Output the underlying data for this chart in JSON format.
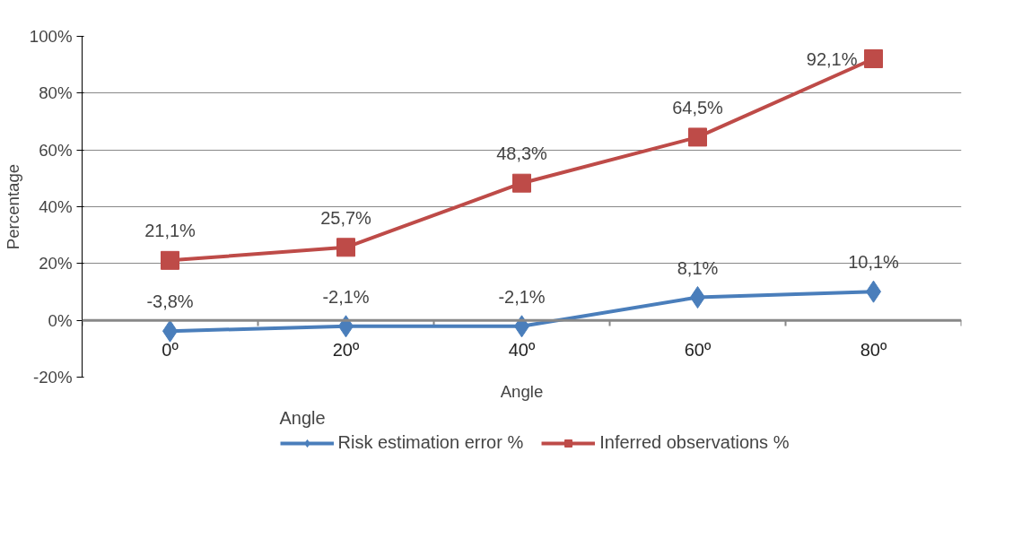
{
  "chart_data": {
    "type": "line",
    "xlabel": "Angle",
    "ylabel": "Percentage",
    "legend_title": "Angle",
    "categories": [
      "0º",
      "20º",
      "40º",
      "60º",
      "80º"
    ],
    "series": [
      {
        "name": "Risk estimation error %",
        "color": "#4a7ebb",
        "marker": "diamond",
        "values": [
          -3.8,
          -2.1,
          -2.1,
          8.1,
          10.1
        ],
        "value_labels": [
          "-3,8%",
          "-2,1%",
          "-2,1%",
          "8,1%",
          "10,1%"
        ]
      },
      {
        "name": "Inferred observations %",
        "color": "#be4b48",
        "marker": "square",
        "values": [
          21.1,
          25.7,
          48.3,
          64.5,
          92.1
        ],
        "value_labels": [
          "21,1%",
          "25,7%",
          "48,3%",
          "64,5%",
          "92,1%"
        ]
      }
    ],
    "ylim": [
      -20,
      100
    ],
    "yticks": [
      {
        "value": -20,
        "label": "-20%"
      },
      {
        "value": 0,
        "label": "0%"
      },
      {
        "value": 20,
        "label": "20%"
      },
      {
        "value": 40,
        "label": "40%"
      },
      {
        "value": 60,
        "label": "60%"
      },
      {
        "value": 80,
        "label": "80%"
      },
      {
        "value": 100,
        "label": "100%"
      }
    ],
    "grid": "y",
    "legend": "bottom",
    "line_style": "solid"
  }
}
